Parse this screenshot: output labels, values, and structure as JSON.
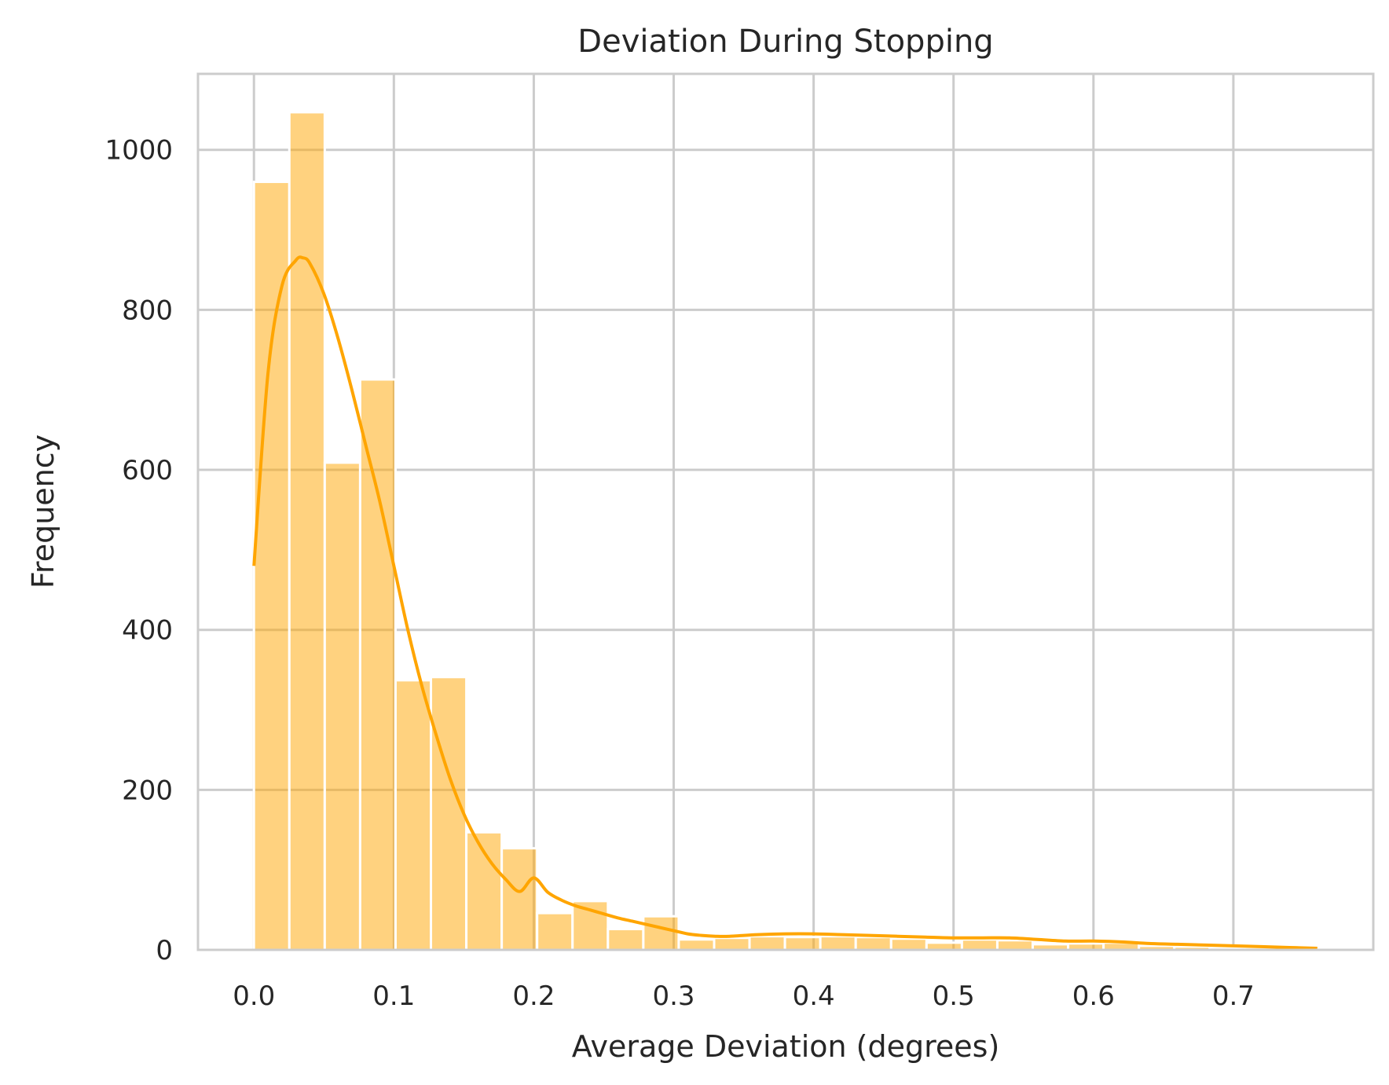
{
  "chart_data": {
    "type": "bar",
    "subtype": "histogram-with-kde",
    "title": "Deviation During Stopping",
    "xlabel": "Average Deviation (degrees)",
    "ylabel": "Frequency",
    "xlim": [
      -0.04,
      0.8
    ],
    "ylim": [
      0,
      1095
    ],
    "x_ticks": [
      "0.0",
      "0.1",
      "0.2",
      "0.3",
      "0.4",
      "0.5",
      "0.6",
      "0.7"
    ],
    "y_ticks": [
      "0",
      "200",
      "400",
      "600",
      "800",
      "1000"
    ],
    "grid": true,
    "legend": "none",
    "bar_color": "#ffa500",
    "bar_opacity": 0.5,
    "line_color": "#ffa500",
    "bin_width": 0.0253,
    "bins": {
      "x_start": [
        0.0,
        0.0253,
        0.0506,
        0.0759,
        0.1012,
        0.1265,
        0.1518,
        0.1771,
        0.2024,
        0.2277,
        0.253,
        0.2783,
        0.3036,
        0.3289,
        0.3542,
        0.3795,
        0.4048,
        0.4301,
        0.4554,
        0.4807,
        0.506,
        0.5313,
        0.5566,
        0.5819,
        0.6072,
        0.6325,
        0.6578,
        0.6831,
        0.7084,
        0.7337
      ],
      "counts": [
        960,
        1047,
        609,
        713,
        337,
        341,
        147,
        127,
        46,
        61,
        26,
        42,
        13,
        15,
        17,
        16,
        17,
        16,
        14,
        9,
        13,
        12,
        7,
        8,
        9,
        5,
        4,
        3,
        3,
        2
      ]
    },
    "kde": {
      "x": [
        0.0,
        0.01,
        0.02,
        0.03,
        0.035,
        0.04,
        0.05,
        0.06,
        0.07,
        0.08,
        0.09,
        0.1,
        0.11,
        0.12,
        0.13,
        0.14,
        0.15,
        0.16,
        0.17,
        0.18,
        0.19,
        0.2,
        0.21,
        0.22,
        0.23,
        0.24,
        0.25,
        0.26,
        0.27,
        0.28,
        0.29,
        0.3,
        0.31,
        0.32,
        0.33,
        0.34,
        0.36,
        0.38,
        0.4,
        0.42,
        0.44,
        0.46,
        0.48,
        0.5,
        0.52,
        0.54,
        0.56,
        0.58,
        0.6,
        0.62,
        0.64,
        0.66,
        0.68,
        0.7,
        0.72,
        0.74,
        0.76
      ],
      "y": [
        480,
        720,
        830,
        862,
        865,
        858,
        820,
        765,
        700,
        630,
        560,
        480,
        400,
        330,
        270,
        215,
        170,
        135,
        108,
        88,
        73,
        90,
        72,
        62,
        55,
        50,
        45,
        40,
        36,
        32,
        28,
        24,
        20,
        18,
        17,
        17,
        19,
        20,
        20,
        19,
        18,
        17,
        16,
        15,
        15,
        15,
        13,
        11,
        11,
        10,
        8,
        7,
        6,
        5,
        4,
        3,
        2
      ]
    }
  }
}
